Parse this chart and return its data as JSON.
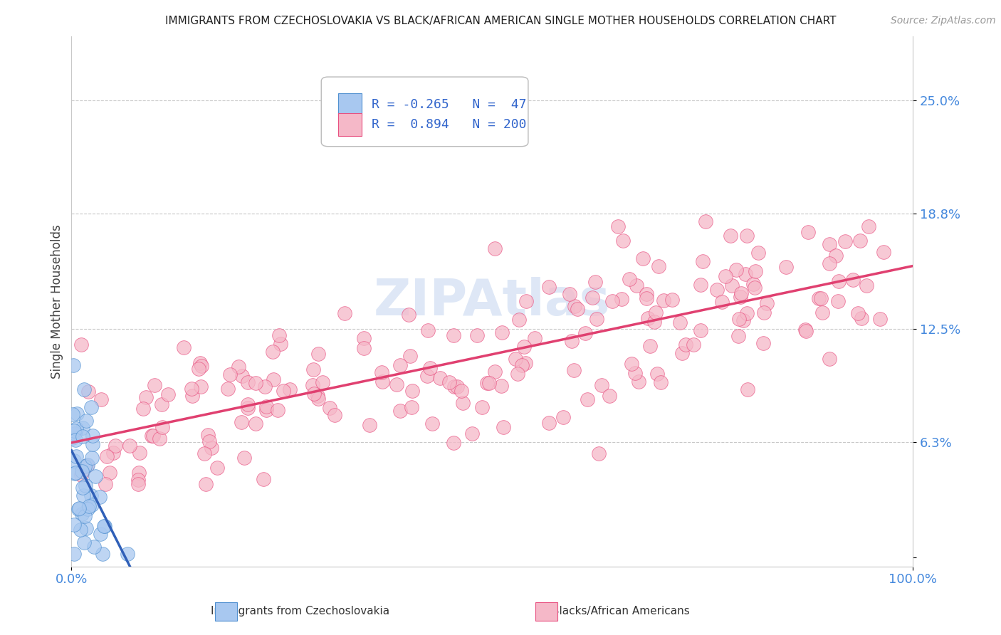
{
  "title": "IMMIGRANTS FROM CZECHOSLOVAKIA VS BLACK/AFRICAN AMERICAN SINGLE MOTHER HOUSEHOLDS CORRELATION CHART",
  "source": "Source: ZipAtlas.com",
  "ylabel": "Single Mother Households",
  "xlim": [
    0.0,
    1.0
  ],
  "ylim": [
    -0.005,
    0.285
  ],
  "yticks": [
    0.0,
    0.063,
    0.125,
    0.188,
    0.25
  ],
  "ytick_labels": [
    "",
    "6.3%",
    "12.5%",
    "18.8%",
    "25.0%"
  ],
  "xtick_labels": [
    "0.0%",
    "100.0%"
  ],
  "legend": {
    "blue_R": "-0.265",
    "blue_N": " 47",
    "pink_R": " 0.894",
    "pink_N": "200"
  },
  "blue_color": "#A8C8F0",
  "pink_color": "#F5B8C8",
  "blue_edge_color": "#5090D0",
  "pink_edge_color": "#E85080",
  "blue_line_color": "#3060B8",
  "pink_line_color": "#E04070",
  "watermark_color": "#C8D8F0",
  "background_color": "#FFFFFF",
  "grid_color": "#C8C8C8",
  "title_color": "#222222",
  "source_color": "#999999",
  "label_color": "#4488DD",
  "ylabel_color": "#444444",
  "blue_seed": 12,
  "pink_seed": 99
}
